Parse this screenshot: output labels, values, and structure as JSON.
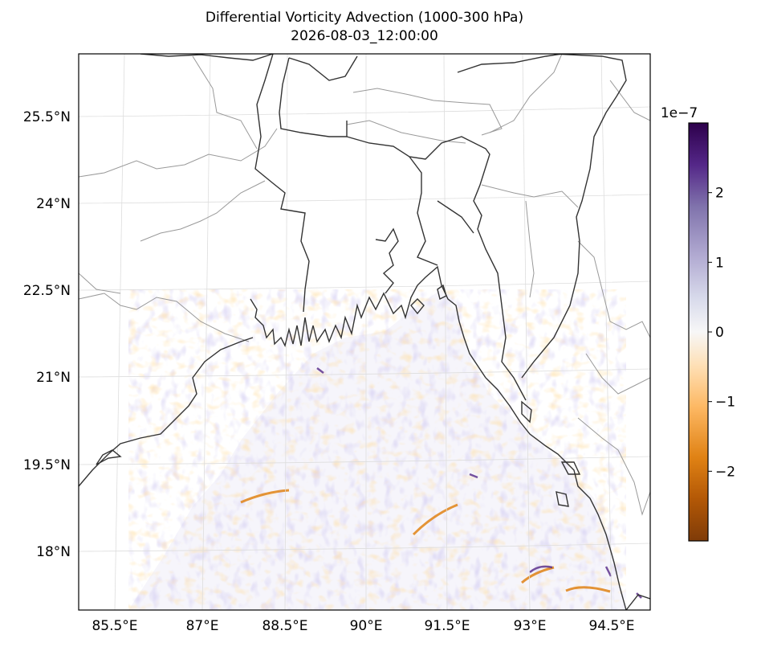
{
  "title": {
    "line1": "Differential Vorticity Advection (1000-300 hPa)",
    "line2": "2026-08-03_12:00:00"
  },
  "map": {
    "lon_ticks": [
      "85.5°E",
      "87°E",
      "88.5°E",
      "90°E",
      "91.5°E",
      "93°E",
      "94.5°E"
    ],
    "lat_ticks": [
      "25.5°N",
      "24°N",
      "22.5°N",
      "21°N",
      "19.5°N",
      "18°N"
    ],
    "coastline_color": "#333333",
    "border_color": "#999999",
    "gridline_color": "#dddddd"
  },
  "colorbar": {
    "exponent_label": "1e−7",
    "ticks": [
      "2",
      "1",
      "0",
      "−1",
      "−2"
    ],
    "tick_values": [
      2,
      1,
      0,
      -1,
      -2
    ],
    "range": [
      -3,
      3
    ],
    "colormap": "PuOr",
    "colors": [
      "#7f3b08",
      "#b35806",
      "#e08214",
      "#fdb863",
      "#fee0b6",
      "#f7f7f7",
      "#d8daeb",
      "#b2abd2",
      "#8073ac",
      "#542788",
      "#2d004b"
    ]
  }
}
